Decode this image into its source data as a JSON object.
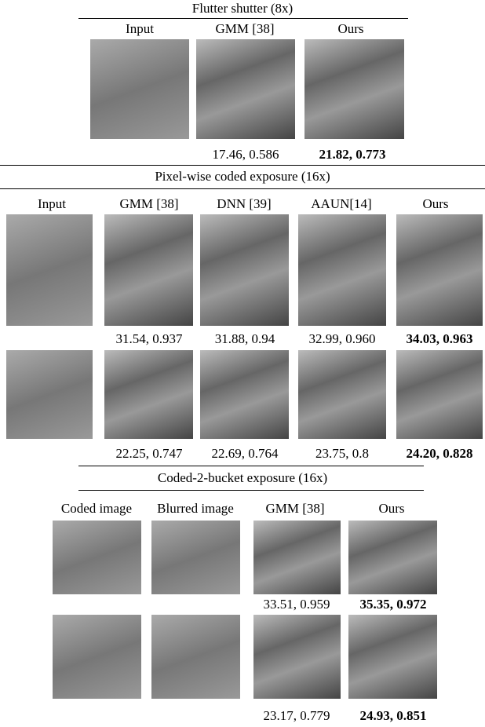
{
  "sections": [
    {
      "title": "Flutter shutter (8x)",
      "columns": [
        "Input",
        "GMM [38]",
        "Ours"
      ],
      "rows": [
        {
          "metrics": [
            "17.46, 0.586",
            "21.82, 0.773"
          ]
        }
      ]
    },
    {
      "title": "Pixel-wise coded exposure (16x)",
      "columns": [
        "Input",
        "GMM [38]",
        "DNN [39]",
        "AAUN[14]",
        "Ours"
      ],
      "rows": [
        {
          "metrics": [
            "31.54, 0.937",
            "31.88, 0.94",
            "32.99, 0.960",
            "34.03, 0.963"
          ]
        },
        {
          "metrics": [
            "22.25, 0.747",
            "22.69, 0.764",
            "23.75, 0.8",
            "24.20, 0.828"
          ]
        }
      ]
    },
    {
      "title": "Coded-2-bucket exposure (16x)",
      "columns": [
        "Coded image",
        "Blurred image",
        "GMM [38]",
        "Ours"
      ],
      "rows": [
        {
          "metrics": [
            "33.51, 0.959",
            "35.35, 0.972"
          ]
        },
        {
          "metrics": [
            "23.17, 0.779",
            "24.93, 0.851"
          ]
        }
      ]
    }
  ]
}
